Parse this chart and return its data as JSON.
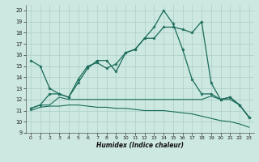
{
  "xlabel": "Humidex (Indice chaleur)",
  "bg_color": "#cce8e0",
  "grid_color": "#aacfc8",
  "line_color": "#1a6b5a",
  "xlim": [
    -0.5,
    23.5
  ],
  "ylim": [
    9,
    20.5
  ],
  "xticks": [
    0,
    1,
    2,
    3,
    4,
    5,
    6,
    7,
    8,
    9,
    10,
    11,
    12,
    13,
    14,
    15,
    16,
    17,
    18,
    19,
    20,
    21,
    22,
    23
  ],
  "yticks": [
    9,
    10,
    11,
    12,
    13,
    14,
    15,
    16,
    17,
    18,
    19,
    20
  ],
  "series": [
    {
      "x": [
        0,
        1,
        2,
        3,
        4,
        5,
        6,
        7,
        8,
        9,
        10,
        11,
        12,
        13,
        14,
        15,
        16,
        17,
        18,
        19,
        20,
        21,
        22,
        23
      ],
      "y": [
        15.5,
        15.0,
        13.0,
        12.5,
        12.2,
        13.8,
        15.0,
        15.3,
        14.8,
        15.2,
        16.2,
        16.5,
        17.5,
        17.5,
        18.5,
        18.5,
        18.3,
        18.0,
        19.0,
        13.5,
        12.0,
        12.2,
        11.5,
        10.4
      ],
      "marker": true,
      "lw": 0.9
    },
    {
      "x": [
        0,
        1,
        2,
        3,
        4,
        5,
        6,
        7,
        8,
        9,
        10,
        11,
        12,
        13,
        14,
        15,
        16,
        17,
        18,
        19,
        20,
        21,
        22,
        23
      ],
      "y": [
        11.2,
        11.5,
        11.5,
        12.2,
        12.0,
        12.0,
        12.0,
        12.0,
        12.0,
        12.0,
        12.0,
        12.0,
        12.0,
        12.0,
        12.0,
        12.0,
        12.0,
        12.0,
        12.0,
        12.3,
        12.0,
        12.0,
        11.5,
        10.4
      ],
      "marker": false,
      "lw": 0.8
    },
    {
      "x": [
        0,
        1,
        2,
        3,
        4,
        5,
        6,
        7,
        8,
        9,
        10,
        11,
        12,
        13,
        14,
        15,
        16,
        17,
        18,
        19,
        20,
        21,
        22,
        23
      ],
      "y": [
        11.0,
        11.3,
        11.4,
        11.4,
        11.5,
        11.5,
        11.4,
        11.3,
        11.3,
        11.2,
        11.2,
        11.1,
        11.0,
        11.0,
        11.0,
        10.9,
        10.8,
        10.7,
        10.5,
        10.3,
        10.1,
        10.0,
        9.8,
        9.5
      ],
      "marker": false,
      "lw": 0.8
    },
    {
      "x": [
        0,
        1,
        2,
        3,
        4,
        5,
        6,
        7,
        8,
        9,
        10,
        11,
        12,
        13,
        14,
        15,
        16,
        17,
        18,
        19,
        20,
        21,
        22,
        23
      ],
      "y": [
        11.2,
        11.5,
        12.5,
        12.5,
        12.2,
        13.5,
        14.8,
        15.5,
        15.5,
        14.5,
        16.2,
        16.5,
        17.5,
        18.5,
        20.0,
        18.8,
        16.5,
        13.8,
        12.5,
        12.5,
        12.0,
        12.2,
        11.5,
        10.4
      ],
      "marker": true,
      "lw": 0.9
    }
  ]
}
